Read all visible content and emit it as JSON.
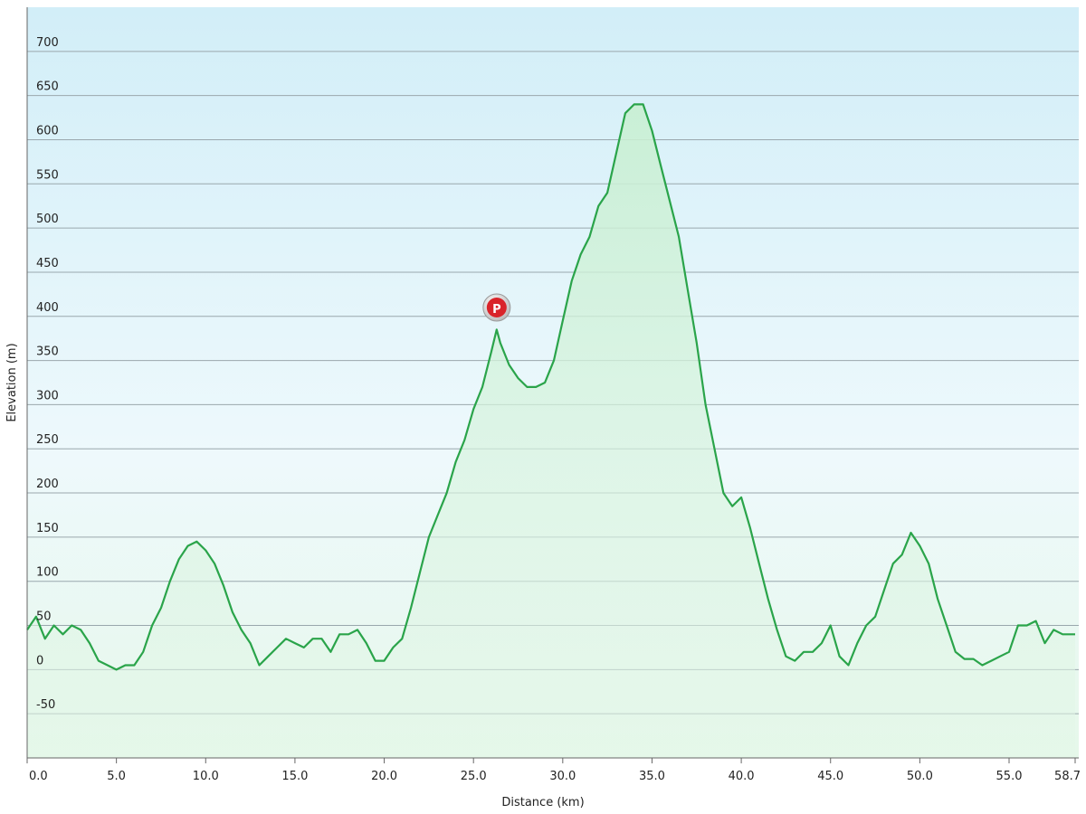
{
  "chart_data": {
    "type": "area",
    "x_label": "Distance  (km)",
    "y_label": "Elevation (m)",
    "color": "#2aa44a",
    "fill": "#d6f2dd",
    "grid": true,
    "xlim": [
      0,
      58.7
    ],
    "ylim": [
      -100,
      750
    ],
    "yticks": [
      -50,
      0,
      50,
      100,
      150,
      200,
      250,
      300,
      350,
      400,
      450,
      500,
      550,
      600,
      650,
      700
    ],
    "xticks": [
      {
        "value": 0,
        "label": "0.0"
      },
      {
        "value": 5,
        "label": "5.0"
      },
      {
        "value": 10,
        "label": "10.0"
      },
      {
        "value": 15,
        "label": "15.0"
      },
      {
        "value": 20,
        "label": "20.0"
      },
      {
        "value": 25,
        "label": "25.0"
      },
      {
        "value": 30,
        "label": "30.0"
      },
      {
        "value": 35,
        "label": "35.0"
      },
      {
        "value": 40,
        "label": "40.0"
      },
      {
        "value": 45,
        "label": "45.0"
      },
      {
        "value": 50,
        "label": "50.0"
      },
      {
        "value": 55,
        "label": "55.0"
      },
      {
        "value": 58.7,
        "label": "58.7"
      }
    ],
    "x": [
      0,
      0.5,
      1,
      1.5,
      2,
      2.5,
      3,
      3.5,
      4,
      4.5,
      5,
      5.5,
      6,
      6.5,
      7,
      7.5,
      8,
      8.5,
      9,
      9.5,
      10,
      10.5,
      11,
      11.5,
      12,
      12.5,
      13,
      13.5,
      14,
      14.5,
      15,
      15.5,
      16,
      16.5,
      17,
      17.5,
      18,
      18.5,
      19,
      19.5,
      20,
      20.5,
      21,
      21.5,
      22,
      22.5,
      23,
      23.5,
      24,
      24.5,
      25,
      25.5,
      26,
      26.3,
      26.5,
      27,
      27.5,
      28,
      28.5,
      29,
      29.5,
      30,
      30.5,
      31,
      31.5,
      32,
      32.5,
      33,
      33.5,
      34,
      34.5,
      35,
      35.5,
      36,
      36.5,
      37,
      37.5,
      38,
      38.5,
      39,
      39.5,
      40,
      40.5,
      41,
      41.5,
      42,
      42.5,
      43,
      43.5,
      44,
      44.5,
      45,
      45.5,
      46,
      46.5,
      47,
      47.5,
      48,
      48.5,
      49,
      49.5,
      50,
      50.5,
      51,
      51.5,
      52,
      52.5,
      53,
      53.5,
      54,
      54.5,
      55,
      55.5,
      56,
      56.5,
      57,
      57.5,
      58,
      58.7
    ],
    "values": [
      45,
      60,
      35,
      50,
      40,
      50,
      45,
      30,
      10,
      5,
      0,
      5,
      5,
      20,
      50,
      70,
      100,
      125,
      140,
      145,
      135,
      120,
      95,
      65,
      45,
      30,
      5,
      15,
      25,
      35,
      30,
      25,
      35,
      35,
      20,
      40,
      40,
      45,
      30,
      10,
      10,
      25,
      35,
      70,
      110,
      150,
      175,
      200,
      235,
      260,
      295,
      320,
      360,
      385,
      370,
      345,
      330,
      320,
      320,
      325,
      350,
      395,
      440,
      470,
      490,
      525,
      540,
      585,
      630,
      640,
      640,
      610,
      570,
      530,
      490,
      430,
      370,
      300,
      250,
      200,
      185,
      195,
      160,
      120,
      80,
      45,
      15,
      10,
      20,
      20,
      30,
      50,
      15,
      5,
      30,
      50,
      60,
      90,
      120,
      130,
      155,
      140,
      120,
      80,
      50,
      20,
      12,
      12,
      5,
      10,
      15,
      20,
      50,
      50,
      55,
      30,
      45,
      40,
      40
    ],
    "annotations": [
      {
        "text": "P",
        "x": 26.3,
        "y": 410
      }
    ]
  }
}
